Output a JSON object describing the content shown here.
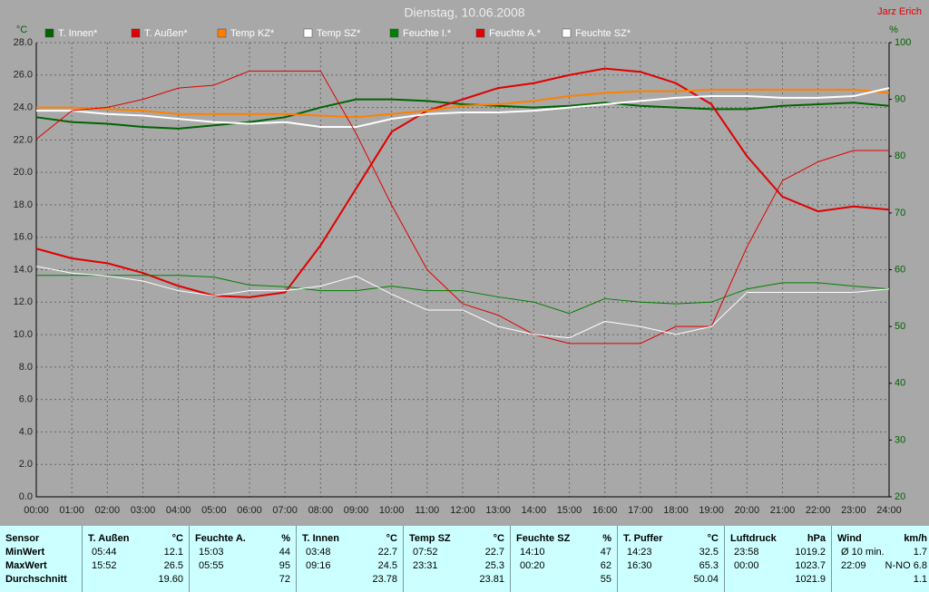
{
  "chart_data": {
    "type": "line",
    "title": "Dienstag, 10.06.2008",
    "author": "Jarz Erich",
    "ylabel": "°C",
    "y2label": "%",
    "x": [
      0,
      1,
      2,
      3,
      4,
      5,
      6,
      7,
      8,
      9,
      10,
      11,
      12,
      13,
      14,
      15,
      16,
      17,
      18,
      19,
      20,
      21,
      22,
      23,
      24
    ],
    "xlim": [
      0,
      24
    ],
    "xticks": [
      {
        "value": 0,
        "label": "00:00"
      },
      {
        "value": 1,
        "label": "01:00"
      },
      {
        "value": 2,
        "label": "02:00"
      },
      {
        "value": 3,
        "label": "03:00"
      },
      {
        "value": 4,
        "label": "04:00"
      },
      {
        "value": 5,
        "label": "05:00"
      },
      {
        "value": 6,
        "label": "06:00"
      },
      {
        "value": 7,
        "label": "07:00"
      },
      {
        "value": 8,
        "label": "08:00"
      },
      {
        "value": 9,
        "label": "09:00"
      },
      {
        "value": 10,
        "label": "10:00"
      },
      {
        "value": 11,
        "label": "11:00"
      },
      {
        "value": 12,
        "label": "12:00"
      },
      {
        "value": 13,
        "label": "13:00"
      },
      {
        "value": 14,
        "label": "14:00"
      },
      {
        "value": 15,
        "label": "15:00"
      },
      {
        "value": 16,
        "label": "16:00"
      },
      {
        "value": 17,
        "label": "17:00"
      },
      {
        "value": 18,
        "label": "18:00"
      },
      {
        "value": 19,
        "label": "19:00"
      },
      {
        "value": 20,
        "label": "20:00"
      },
      {
        "value": 21,
        "label": "21:00"
      },
      {
        "value": 22,
        "label": "22:00"
      },
      {
        "value": 23,
        "label": "23:00"
      },
      {
        "value": 24,
        "label": "24:00"
      }
    ],
    "ylim": [
      0,
      28
    ],
    "yticks": [
      {
        "value": 0,
        "label": "0.0"
      },
      {
        "value": 2,
        "label": "2.0"
      },
      {
        "value": 4,
        "label": "4.0"
      },
      {
        "value": 6,
        "label": "6.0"
      },
      {
        "value": 8,
        "label": "8.0"
      },
      {
        "value": 10,
        "label": "10.0"
      },
      {
        "value": 12,
        "label": "12.0"
      },
      {
        "value": 14,
        "label": "14.0"
      },
      {
        "value": 16,
        "label": "16.0"
      },
      {
        "value": 18,
        "label": "18.0"
      },
      {
        "value": 20,
        "label": "20.0"
      },
      {
        "value": 22,
        "label": "22.0"
      },
      {
        "value": 24,
        "label": "24.0"
      },
      {
        "value": 26,
        "label": "26.0"
      },
      {
        "value": 28,
        "label": "28.0"
      }
    ],
    "y2lim": [
      20,
      100
    ],
    "y2ticks": [
      20,
      30,
      40,
      50,
      60,
      70,
      80,
      90,
      100
    ],
    "grid": true,
    "series": [
      {
        "name": "T. Innen*",
        "color": "#006400",
        "width": 2,
        "values": [
          23.4,
          23.1,
          23.0,
          22.8,
          22.7,
          22.9,
          23.1,
          23.4,
          24.0,
          24.5,
          24.5,
          24.4,
          24.2,
          24.1,
          24.0,
          24.1,
          24.3,
          24.1,
          24.0,
          23.9,
          23.9,
          24.1,
          24.2,
          24.3,
          24.1
        ]
      },
      {
        "name": "T. Außen*",
        "color": "#e00000",
        "width": 2,
        "values": [
          15.3,
          14.7,
          14.4,
          13.8,
          13.0,
          12.4,
          12.3,
          12.6,
          15.5,
          19.0,
          22.5,
          23.8,
          24.5,
          25.2,
          25.5,
          26.0,
          26.4,
          26.2,
          25.5,
          24.2,
          21.0,
          18.5,
          17.6,
          17.9,
          17.7
        ]
      },
      {
        "name": "Temp KZ*",
        "color": "#ff8000",
        "width": 2,
        "values": [
          24.0,
          24.0,
          23.9,
          23.8,
          23.6,
          23.6,
          23.6,
          23.6,
          23.5,
          23.4,
          23.6,
          23.8,
          24.1,
          24.2,
          24.4,
          24.7,
          24.9,
          25.0,
          25.0,
          25.1,
          25.1,
          25.1,
          25.1,
          25.1,
          24.9
        ]
      },
      {
        "name": "Temp SZ*",
        "color": "#ffffff",
        "width": 2,
        "values": [
          23.8,
          23.8,
          23.6,
          23.5,
          23.3,
          23.1,
          23.0,
          23.1,
          22.8,
          22.8,
          23.3,
          23.6,
          23.7,
          23.7,
          23.8,
          24.0,
          24.2,
          24.4,
          24.6,
          24.7,
          24.7,
          24.6,
          24.6,
          24.7,
          25.2
        ]
      },
      {
        "name": "Feuchte I.*",
        "color": "#008000",
        "width": 1,
        "axis": "y2",
        "values": [
          59,
          59,
          59,
          59,
          59,
          58.7,
          57.3,
          57,
          56.3,
          56.3,
          57.1,
          56.3,
          56.3,
          55.2,
          54.3,
          52.3,
          54.9,
          54.3,
          54,
          54.3,
          56.6,
          57.7,
          57.7,
          57.1,
          56.6
        ]
      },
      {
        "name": "Feuchte A.*",
        "color": "#e00000",
        "width": 1,
        "axis": "y2",
        "values": [
          83,
          88,
          88.6,
          90,
          92,
          92.5,
          95,
          95,
          95,
          84,
          71.4,
          60,
          54,
          52,
          48.6,
          47,
          47,
          47,
          50,
          50,
          64,
          75.7,
          79,
          81,
          81
        ]
      },
      {
        "name": "Feuchte SZ*",
        "color": "#ffffff",
        "width": 1,
        "axis": "y2",
        "values": [
          60.6,
          59.4,
          58.9,
          58,
          56.3,
          55.4,
          56.3,
          56.3,
          57.1,
          58.9,
          55.7,
          52.9,
          52.9,
          50,
          48.6,
          48,
          50.9,
          50,
          48.6,
          50,
          56,
          56,
          56,
          56,
          56.6
        ]
      }
    ]
  },
  "table": {
    "corner": "Sensor",
    "row_labels": [
      "MinWert",
      "MaxWert",
      "Durchschnitt"
    ],
    "columns": [
      {
        "name": "T. Außen",
        "unit": "°C",
        "cells": [
          {
            "time": "05:44",
            "value": "12.1"
          },
          {
            "time": "15:52",
            "value": "26.5"
          },
          {
            "value": "19.60"
          }
        ]
      },
      {
        "name": "Feuchte A.",
        "unit": "%",
        "cells": [
          {
            "time": "15:03",
            "value": "44"
          },
          {
            "time": "05:55",
            "value": "95"
          },
          {
            "value": "72"
          }
        ]
      },
      {
        "name": "T. Innen",
        "unit": "°C",
        "cells": [
          {
            "time": "03:48",
            "value": "22.7"
          },
          {
            "time": "09:16",
            "value": "24.5"
          },
          {
            "value": "23.78"
          }
        ]
      },
      {
        "name": "Temp SZ",
        "unit": "°C",
        "cells": [
          {
            "time": "07:52",
            "value": "22.7"
          },
          {
            "time": "23:31",
            "value": "25.3"
          },
          {
            "value": "23.81"
          }
        ]
      },
      {
        "name": "Feuchte SZ",
        "unit": "%",
        "cells": [
          {
            "time": "14:10",
            "value": "47"
          },
          {
            "time": "00:20",
            "value": "62"
          },
          {
            "value": "55"
          }
        ]
      },
      {
        "name": "T. Puffer",
        "unit": "°C",
        "cells": [
          {
            "time": "14:23",
            "value": "32.5"
          },
          {
            "time": "16:30",
            "value": "65.3"
          },
          {
            "value": "50.04"
          }
        ]
      },
      {
        "name": "Luftdruck",
        "unit": "hPa",
        "cells": [
          {
            "time": "23:58",
            "value": "1019.2"
          },
          {
            "time": "00:00",
            "value": "1023.7"
          },
          {
            "value": "1021.9"
          }
        ]
      },
      {
        "name": "Wind",
        "unit": "km/h",
        "cells": [
          {
            "time": "Ø 10 min.",
            "value": "1.7"
          },
          {
            "time": "22:09",
            "value": "N-NO 6.8"
          },
          {
            "value": "1.1"
          }
        ]
      }
    ]
  }
}
